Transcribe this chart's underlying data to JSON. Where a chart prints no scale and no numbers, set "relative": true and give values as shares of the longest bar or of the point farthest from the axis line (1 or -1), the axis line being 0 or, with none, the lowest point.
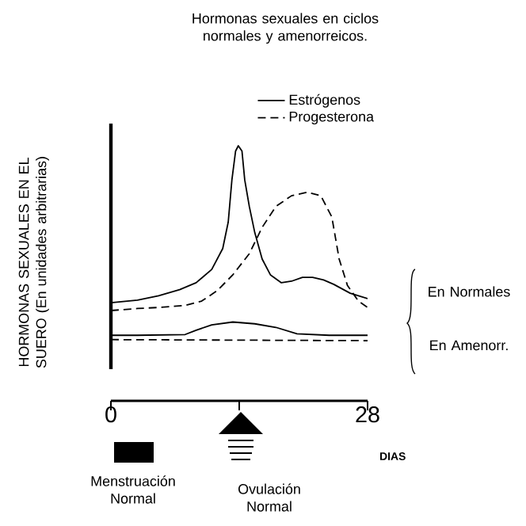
{
  "chart_data": {
    "type": "line",
    "title": "Hormonas sexuales en ciclos normales y amenorreicos.",
    "ylabel": "HORMONAS SEXUALES EN EL SUERO (En unidades arbitrarias)",
    "xlabel": "DIAS",
    "relative": true,
    "xlim": [
      0,
      28
    ],
    "xticks": [
      0,
      {
        "value": 14,
        "label": null
      },
      28
    ],
    "legend": "top right",
    "series": [
      {
        "name": "Estrógenos",
        "color": "#000000",
        "line_style": "solid",
        "x": [
          0,
          2.9,
          5.2,
          7.5,
          9.3,
          11.0,
          12.2,
          12.8,
          13.2,
          13.6,
          13.9,
          14.3,
          14.6,
          15.1,
          15.7,
          16.5,
          17.4,
          18.6,
          19.7,
          20.9,
          22.0,
          23.2,
          24.3,
          26.1,
          28
        ],
        "values": [
          0.385,
          0.395,
          0.412,
          0.436,
          0.463,
          0.515,
          0.597,
          0.701,
          0.866,
          0.979,
          1.0,
          0.979,
          0.866,
          0.762,
          0.659,
          0.556,
          0.494,
          0.463,
          0.469,
          0.484,
          0.484,
          0.474,
          0.457,
          0.422,
          0.401
        ]
      },
      {
        "name": "Progesterona",
        "color": "#000000",
        "line_style": "dashed",
        "x": [
          0,
          2.9,
          5.2,
          8.1,
          9.9,
          11.6,
          13.3,
          15.1,
          16.5,
          18.0,
          19.7,
          21.4,
          22.9,
          24.1,
          24.9,
          25.8,
          27.0,
          28
        ],
        "values": [
          0.354,
          0.362,
          0.366,
          0.374,
          0.391,
          0.432,
          0.494,
          0.577,
          0.68,
          0.762,
          0.804,
          0.818,
          0.804,
          0.721,
          0.556,
          0.453,
          0.391,
          0.366
        ]
      },
      {
        "color": "#000000",
        "line_style": "solid",
        "x": [
          0,
          2.9,
          8.1,
          9.3,
          11.0,
          13.3,
          15.7,
          18.0,
          20.3,
          23.8,
          28
        ],
        "values": [
          0.257,
          0.257,
          0.26,
          0.277,
          0.298,
          0.309,
          0.302,
          0.288,
          0.263,
          0.257,
          0.257
        ]
      },
      {
        "color": "#000000",
        "line_style": "dashed",
        "x": [
          0,
          14,
          28
        ],
        "values": [
          0.24,
          0.238,
          0.236
        ]
      }
    ],
    "annotations": [
      "En Normales",
      "En Amenorr.",
      "Menstruación Normal",
      "Ovulación Normal"
    ]
  }
}
